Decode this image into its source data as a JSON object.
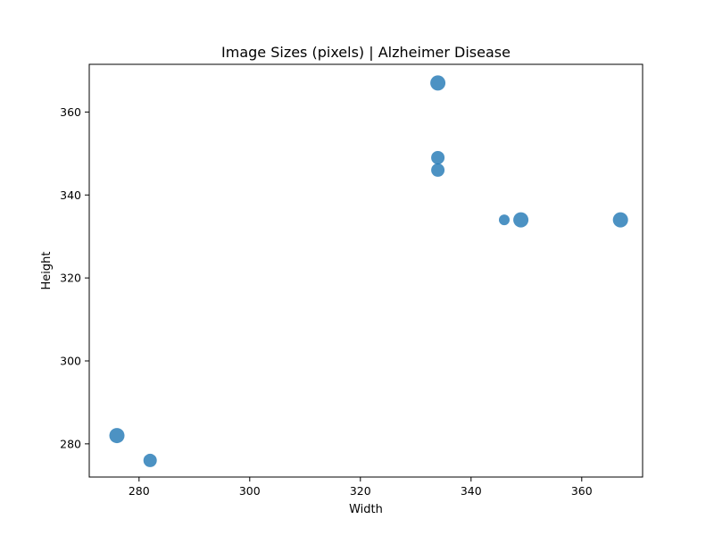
{
  "chart_data": {
    "type": "scatter",
    "title": "Image Sizes (pixels) | Alzheimer Disease",
    "xlabel": "Width",
    "ylabel": "Height",
    "xlim": [
      271,
      371
    ],
    "ylim": [
      272,
      371.5
    ],
    "xticks": [
      280,
      300,
      320,
      340,
      360
    ],
    "yticks": [
      280,
      300,
      320,
      340,
      360
    ],
    "grid": false,
    "marker_color": "#1f77b4",
    "marker_alpha": 0.8,
    "points": [
      {
        "x": 334,
        "y": 367,
        "count": 3
      },
      {
        "x": 334,
        "y": 349,
        "count": 2
      },
      {
        "x": 334,
        "y": 346,
        "count": 2
      },
      {
        "x": 346,
        "y": 334,
        "count": 1
      },
      {
        "x": 349,
        "y": 334,
        "count": 3
      },
      {
        "x": 367,
        "y": 334,
        "count": 3
      },
      {
        "x": 276,
        "y": 282,
        "count": 3
      },
      {
        "x": 282,
        "y": 276,
        "count": 2
      }
    ]
  }
}
